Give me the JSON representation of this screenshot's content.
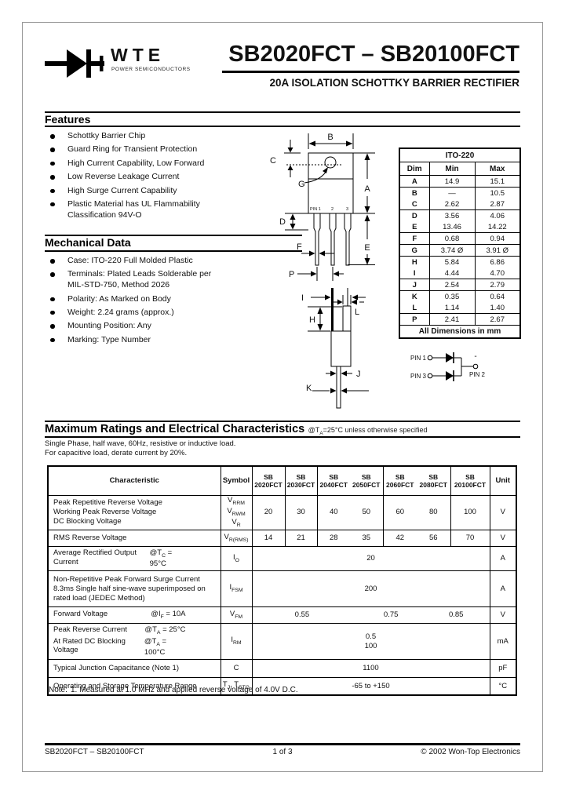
{
  "header": {
    "logo_text": "WTE",
    "logo_tagline": "POWER SEMICONDUCTORS",
    "part_range": "SB2020FCT – SB20100FCT",
    "subtitle": "20A ISOLATION SCHOTTKY BARRIER RECTIFIER"
  },
  "features": {
    "heading": "Features",
    "items": [
      "Schottky Barrier Chip",
      "Guard Ring for Transient Protection",
      "High Current Capability, Low Forward",
      "Low Reverse Leakage Current",
      "High Surge Current Capability",
      "Plastic Material has UL Flammability\nClassification 94V-O"
    ]
  },
  "mechanical": {
    "heading": "Mechanical Data",
    "items": [
      "Case: ITO-220 Full Molded Plastic",
      "Terminals: Plated Leads Solderable per\nMIL-STD-750, Method 2026",
      "Polarity: As Marked on Body",
      "Weight: 2.24 grams (approx.)",
      "Mounting Position: Any",
      "Marking: Type Number"
    ]
  },
  "package_drawing": {
    "front_labels": {
      "b": "B",
      "c": "C",
      "g": "G",
      "a": "A",
      "d": "D",
      "e": "E",
      "f": "F",
      "p": "P",
      "pin1": "PIN 1",
      "pin2": "2",
      "pin3": "3"
    },
    "side_labels": {
      "i": "I",
      "l": "L",
      "h": "H",
      "j": "J",
      "k": "K"
    }
  },
  "dim_table": {
    "title": "ITO-220",
    "headers": [
      "Dim",
      "Min",
      "Max"
    ],
    "rows": [
      [
        "A",
        "14.9",
        "15.1"
      ],
      [
        "B",
        "—",
        "10.5"
      ],
      [
        "C",
        "2.62",
        "2.87"
      ],
      [
        "D",
        "3.56",
        "4.06"
      ],
      [
        "E",
        "13.46",
        "14.22"
      ],
      [
        "F",
        "0.68",
        "0.94"
      ],
      [
        "G",
        "3.74 Ø",
        "3.91 Ø"
      ],
      [
        "H",
        "5.84",
        "6.86"
      ],
      [
        "I",
        "4.44",
        "4.70"
      ],
      [
        "J",
        "2.54",
        "2.79"
      ],
      [
        "K",
        "0.35",
        "0.64"
      ],
      [
        "L",
        "1.14",
        "1.40"
      ],
      [
        "P",
        "2.41",
        "2.67"
      ]
    ],
    "footer": "All Dimensions in mm"
  },
  "schematic": {
    "pin1": "PIN 1",
    "pin3": "PIN 3",
    "pin2": "PIN 2",
    "polarity": "-"
  },
  "ratings": {
    "heading": "Maximum Ratings and Electrical Characteristics",
    "heading_note": "@T~A~=25°C unless otherwise specified",
    "condition1": "Single Phase, half wave, 60Hz, resistive or inductive load.",
    "condition2": "For capacitive load, derate current by 20%.",
    "columns": {
      "characteristic": "Characteristic",
      "symbol": "Symbol",
      "unit": "Unit",
      "products": [
        {
          "line1": "SB",
          "line2": "2020FCT"
        },
        {
          "line1": "SB",
          "line2": "2030FCT"
        },
        {
          "line1": "SB",
          "line2": "2040FCT"
        },
        {
          "line1": "SB",
          "line2": "2050FCT"
        },
        {
          "line1": "SB",
          "line2": "2060FCT"
        },
        {
          "line1": "SB",
          "line2": "2080FCT"
        },
        {
          "line1": "SB",
          "line2": "20100FCT"
        }
      ]
    },
    "rows": [
      {
        "characteristic": "Peak Repetitive Reverse Voltage\nWorking Peak Reverse Voltage\nDC Blocking Voltage",
        "symbol": "V~RRM~\nV~RWM~\nV~R~",
        "values": [
          "20",
          "30",
          "40",
          "50",
          "60",
          "80",
          "100"
        ],
        "unit": "V"
      },
      {
        "characteristic": "RMS Reverse Voltage",
        "symbol": "V~R(RMS)~",
        "values": [
          "14",
          "21",
          "28",
          "35",
          "42",
          "56",
          "70"
        ],
        "unit": "V"
      },
      {
        "characteristic": "Average Rectified Output Current",
        "condition": "@T~C~ = 95°C",
        "symbol": "I~O~",
        "value": "20",
        "unit": "A"
      },
      {
        "characteristic": "Non-Repetitive Peak Forward Surge Current\n8.3ms Single half sine-wave superimposed on\nrated load (JEDEC Method)",
        "symbol": "I~FSM~",
        "value": "200",
        "unit": "A"
      },
      {
        "characteristic": "Forward Voltage",
        "condition": "@I~F~ = 10A",
        "symbol": "V~FM~",
        "values": [
          "0.55",
          "0.75",
          "0.85"
        ],
        "unit": "V"
      },
      {
        "characteristic1": "Peak Reverse Current",
        "condition1": "@T~A~ = 25°C",
        "characteristic2": "At Rated DC Blocking Voltage",
        "condition2": "@T~A~ = 100°C",
        "symbol": "I~RM~",
        "value1": "0.5",
        "value2": "100",
        "unit": "mA"
      },
      {
        "characteristic": "Typical Junction Capacitance (Note 1)",
        "symbol": "C",
        "value": "1100",
        "unit": "pF"
      },
      {
        "characteristic": "Operating and Storage Temperature Range",
        "symbol": "T~J~, T~STG~",
        "value": "-65 to +150",
        "unit": "°C"
      }
    ],
    "note_label": "Note:",
    "note": "1. Measured at 1.0 MHz and applied reverse voltage of 4.0V D.C."
  },
  "footer": {
    "left": "SB2020FCT – SB20100FCT",
    "center": "1 of 3",
    "right": "© 2002 Won-Top Electronics"
  }
}
